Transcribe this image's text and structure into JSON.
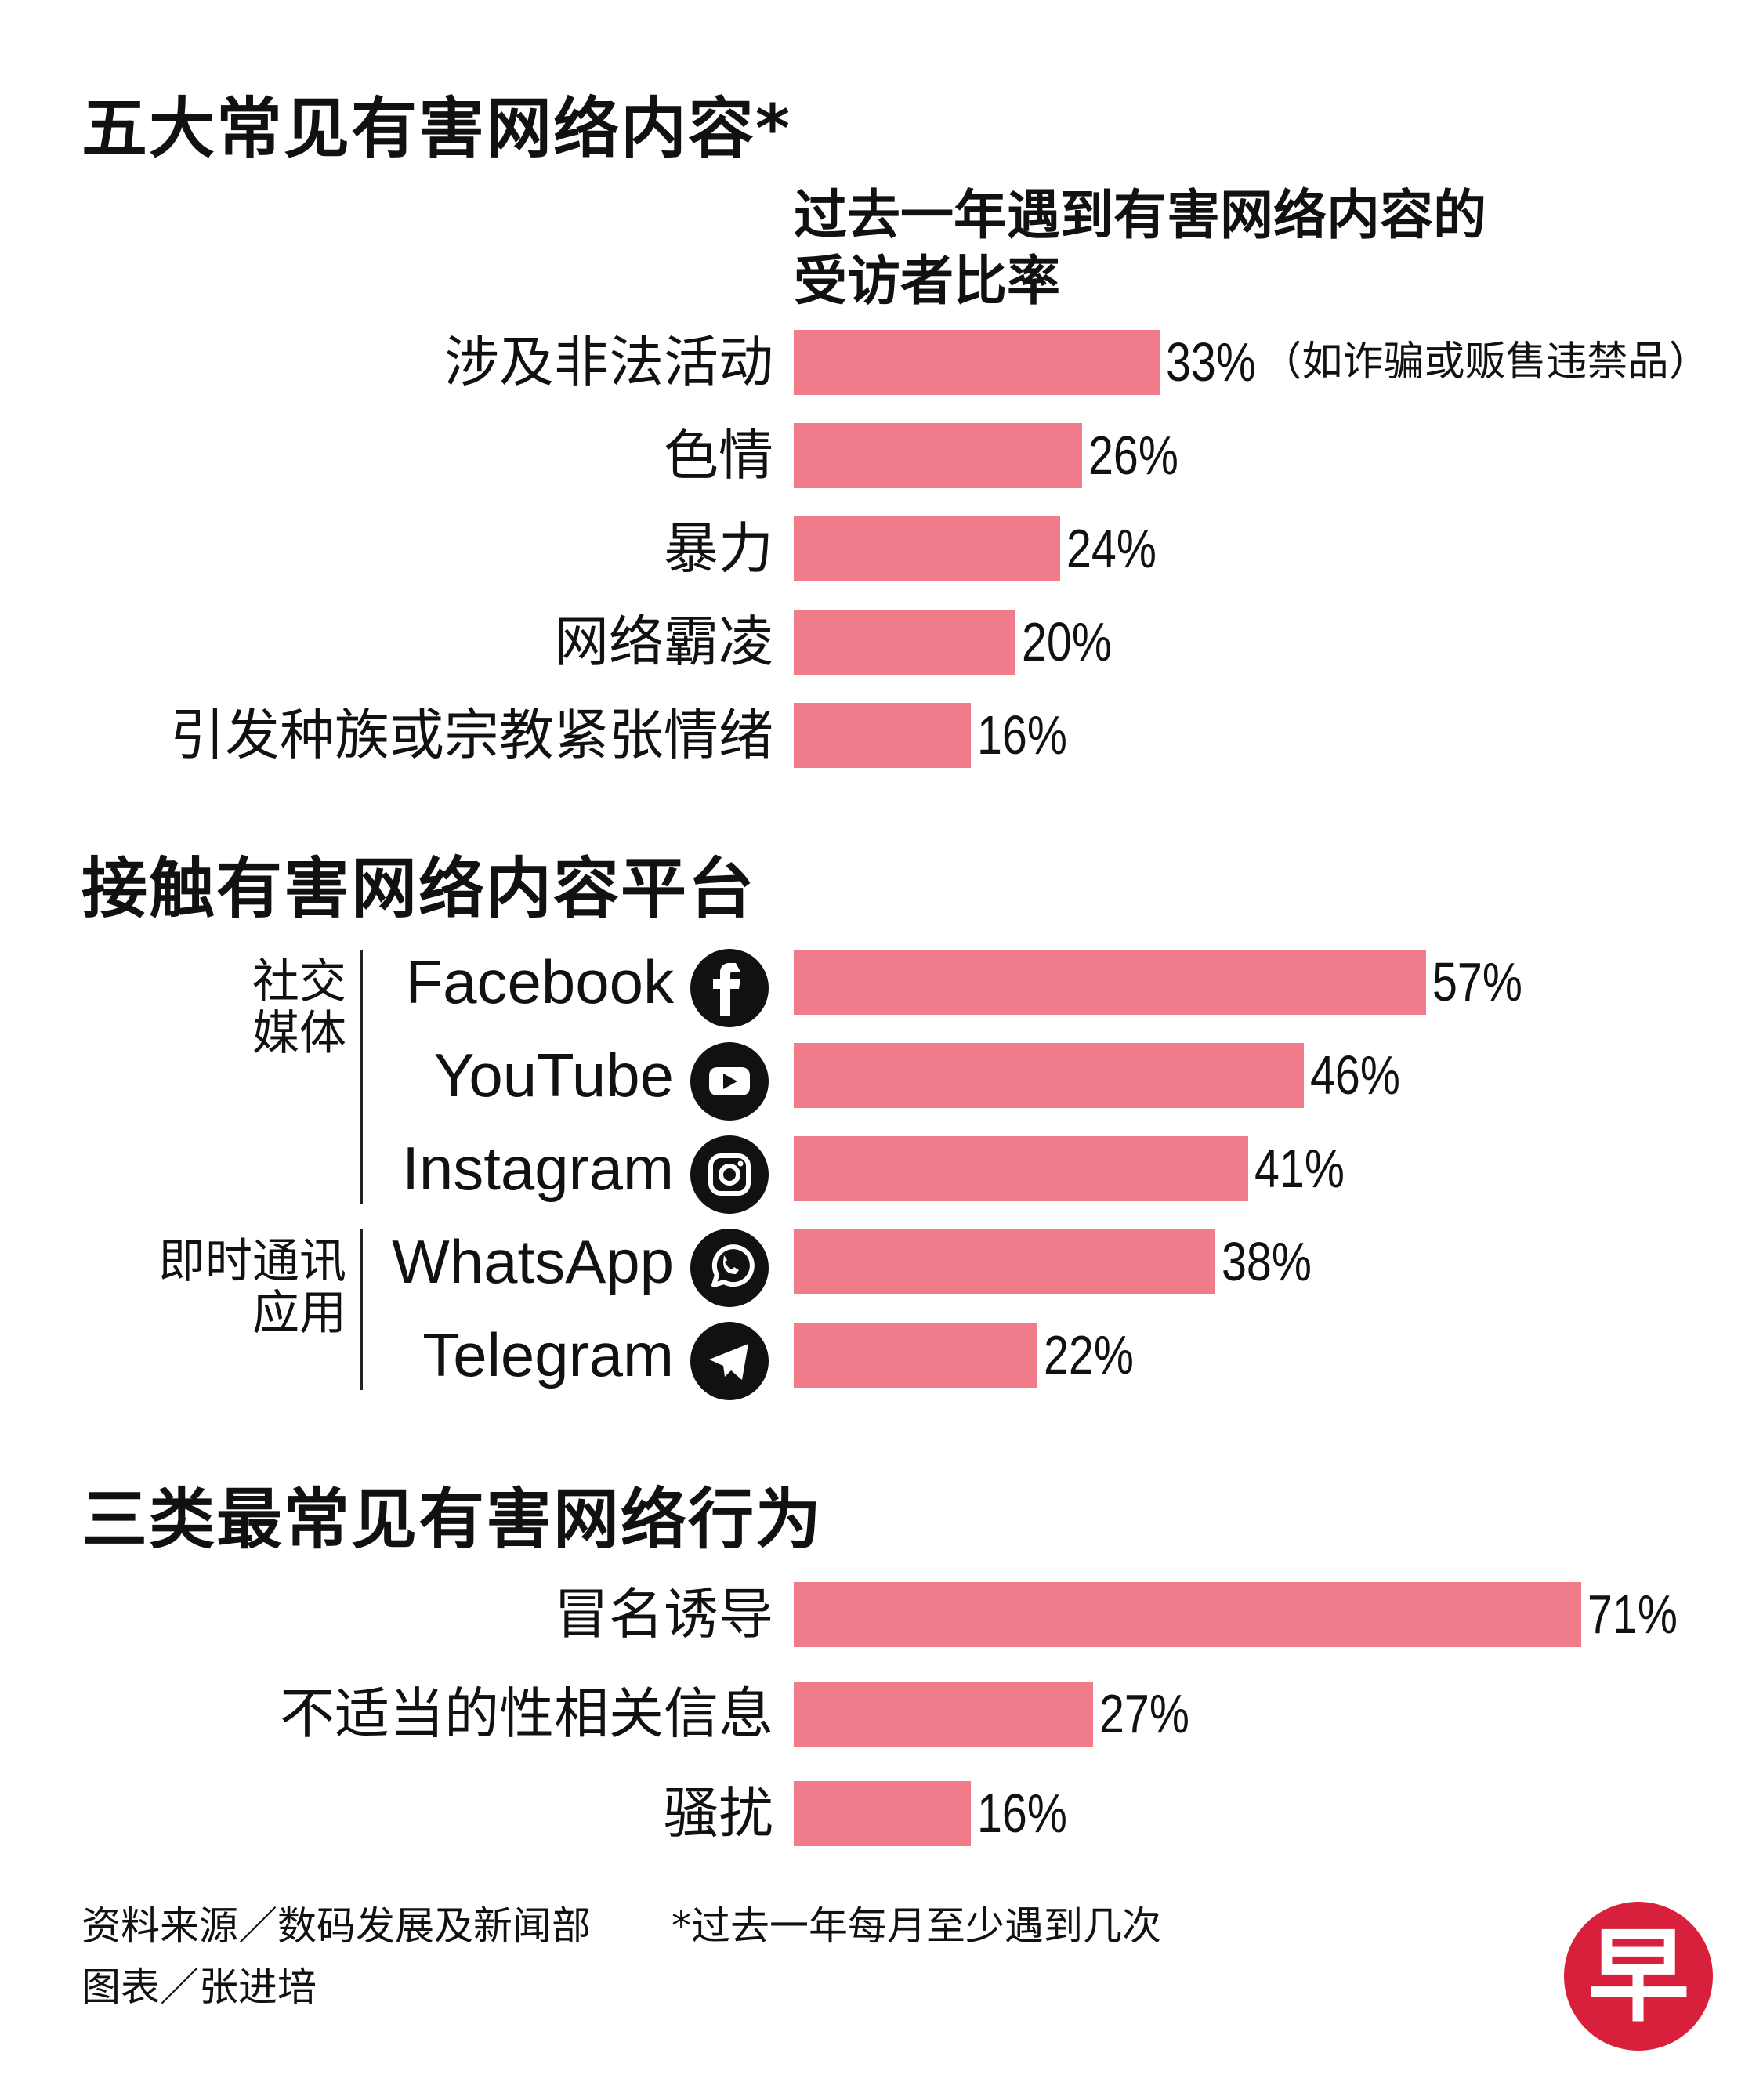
{
  "chart_data": [
    {
      "type": "bar",
      "orientation": "horizontal",
      "title": "五大常见有害网络内容*",
      "subtitle": "过去一年遇到有害网络内容的受访者比率",
      "categories": [
        "涉及非法活动",
        "色情",
        "暴力",
        "网络霸凌",
        "引发种族或宗教紧张情绪"
      ],
      "values": [
        33,
        26,
        24,
        20,
        16
      ],
      "value_labels": [
        "33%",
        "26%",
        "24%",
        "20%",
        "16%"
      ],
      "annotations": [
        {
          "category": "涉及非法活动",
          "text": "（如诈骗或贩售违禁品）"
        }
      ],
      "color": "#f07b8b"
    },
    {
      "type": "bar",
      "orientation": "horizontal",
      "title": "接触有害网络内容平台",
      "categories": [
        "Facebook",
        "YouTube",
        "Instagram",
        "WhatsApp",
        "Telegram"
      ],
      "values": [
        57,
        46,
        41,
        38,
        22
      ],
      "value_labels": [
        "57%",
        "46%",
        "41%",
        "38%",
        "22%"
      ],
      "groups": [
        {
          "label": "社交媒体",
          "members": [
            "Facebook",
            "YouTube",
            "Instagram"
          ]
        },
        {
          "label": "即时通讯应用",
          "members": [
            "WhatsApp",
            "Telegram"
          ]
        }
      ],
      "color": "#f07b8b"
    },
    {
      "type": "bar",
      "orientation": "horizontal",
      "title": "三类最常见有害网络行为",
      "categories": [
        "冒名诱导",
        "不适当的性相关信息",
        "骚扰"
      ],
      "values": [
        71,
        27,
        16
      ],
      "value_labels": [
        "71%",
        "27%",
        "16%"
      ],
      "color": "#f07b8b"
    }
  ],
  "footer": {
    "source": "资料来源／数码发展及新闻部",
    "footnote": "*过去一年每月至少遇到几次",
    "credit": "图表／张进培"
  },
  "logo": "早"
}
